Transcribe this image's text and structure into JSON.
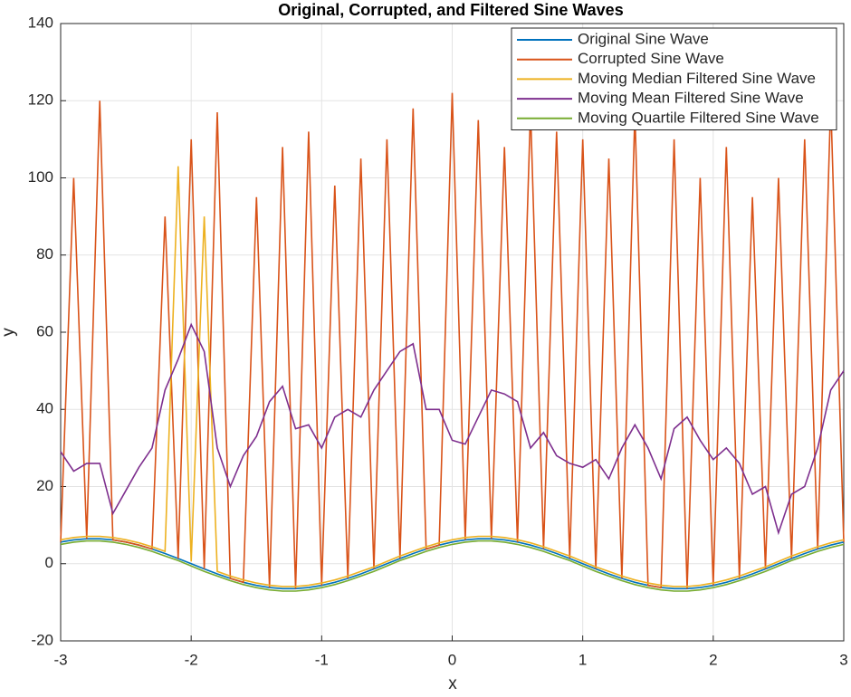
{
  "chart_data": {
    "type": "line",
    "title": "Original, Corrupted, and Filtered Sine Waves",
    "xlabel": "x",
    "ylabel": "y",
    "x": [
      -3,
      -2.9,
      -2.8,
      -2.7,
      -2.6,
      -2.5,
      -2.4,
      -2.3,
      -2.2,
      -2.1,
      -2,
      -1.9,
      -1.8,
      -1.7,
      -1.6,
      -1.5,
      -1.4,
      -1.3,
      -1.2,
      -1.1,
      -1,
      -0.9,
      -0.8,
      -0.7,
      -0.6,
      -0.5,
      -0.4,
      -0.3,
      -0.2,
      -0.1,
      0,
      0.1,
      0.2,
      0.3,
      0.4,
      0.5,
      0.6,
      0.7,
      0.8,
      0.9,
      1,
      1.1,
      1.2,
      1.3,
      1.4,
      1.5,
      1.6,
      1.7,
      1.8,
      1.9,
      2,
      2.1,
      2.2,
      2.3,
      2.4,
      2.5,
      2.6,
      2.7,
      2.8,
      2.9,
      3
    ],
    "series": [
      {
        "name": "Original Sine Wave",
        "color": "#0072BD",
        "values": [
          5.63,
          6.18,
          6.47,
          6.47,
          6.18,
          5.63,
          4.83,
          3.82,
          2.64,
          1.35,
          0,
          -1.35,
          -2.64,
          -3.82,
          -4.83,
          -5.63,
          -6.18,
          -6.47,
          -6.47,
          -6.18,
          -5.63,
          -4.83,
          -3.82,
          -2.64,
          -1.35,
          0,
          1.35,
          2.64,
          3.82,
          4.83,
          5.63,
          6.18,
          6.47,
          6.47,
          6.18,
          5.63,
          4.83,
          3.82,
          2.64,
          1.35,
          0,
          -1.35,
          -2.64,
          -3.82,
          -4.83,
          -5.63,
          -6.18,
          -6.47,
          -6.47,
          -6.18,
          -5.63,
          -4.83,
          -3.82,
          -2.64,
          -1.35,
          0,
          1.35,
          2.64,
          3.82,
          4.83,
          5.63
        ]
      },
      {
        "name": "Corrupted Sine Wave",
        "color": "#D95319",
        "values": [
          5.63,
          100,
          6.47,
          120,
          6.18,
          5.63,
          4.83,
          3.82,
          90,
          1.35,
          110,
          -1.35,
          117,
          -3.82,
          -4.83,
          95,
          -6.18,
          108,
          -6.47,
          112,
          -5.63,
          98,
          -3.82,
          105,
          -1.35,
          110,
          1.35,
          118,
          3.82,
          4.83,
          122,
          6.18,
          115,
          6.47,
          108,
          5.63,
          118,
          3.82,
          112,
          1.35,
          110,
          -1.35,
          105,
          -3.82,
          117,
          -5.63,
          -6.18,
          110,
          -6.47,
          100,
          -5.63,
          108,
          -3.82,
          95,
          -1.35,
          100,
          1.35,
          110,
          3.82,
          120,
          5.63
        ]
      },
      {
        "name": "Moving Median Filtered Sine Wave",
        "color": "#EDB120",
        "values": [
          6.2,
          6.8,
          7.1,
          7.1,
          6.8,
          6.2,
          5.4,
          4.4,
          3.2,
          103,
          0.6,
          90,
          -2.0,
          -3.2,
          -4.2,
          -5.0,
          -5.6,
          -5.9,
          -5.9,
          -5.6,
          -5.0,
          -4.2,
          -3.2,
          -2.0,
          -0.8,
          0.6,
          2.0,
          3.2,
          4.4,
          5.4,
          6.2,
          6.8,
          7.1,
          7.1,
          6.8,
          6.2,
          5.4,
          4.4,
          3.2,
          2.0,
          0.6,
          -0.8,
          -2.0,
          -3.2,
          -4.2,
          -5.0,
          -5.6,
          -5.9,
          -5.9,
          -5.6,
          -5.0,
          -4.2,
          -3.2,
          -2.0,
          -0.8,
          0.6,
          2.0,
          3.2,
          4.4,
          5.4,
          6.2
        ]
      },
      {
        "name": "Moving Mean Filtered Sine Wave",
        "color": "#7E2F8E",
        "values": [
          29,
          24,
          26,
          26,
          13,
          19,
          25,
          30,
          45,
          53,
          62,
          55,
          30,
          20,
          28,
          33,
          42,
          46,
          35,
          36,
          30,
          38,
          40,
          38,
          45,
          50,
          55,
          57,
          40,
          40,
          32,
          31,
          38,
          45,
          44,
          42,
          30,
          34,
          28,
          26,
          25,
          27,
          22,
          30,
          36,
          30,
          22,
          35,
          38,
          32,
          27,
          30,
          26,
          18,
          20,
          8,
          18,
          20,
          30,
          45,
          50
        ]
      },
      {
        "name": "Moving Quartile Filtered Sine Wave",
        "color": "#77AC30",
        "values": [
          5.0,
          5.6,
          5.9,
          5.9,
          5.6,
          5.0,
          4.2,
          3.2,
          2.0,
          0.8,
          -0.6,
          -2.0,
          -3.2,
          -4.4,
          -5.4,
          -6.2,
          -6.8,
          -7.1,
          -7.1,
          -6.8,
          -6.2,
          -5.4,
          -4.4,
          -3.2,
          -2.0,
          -0.6,
          0.8,
          2.0,
          3.2,
          4.2,
          5.0,
          5.6,
          5.9,
          5.9,
          5.6,
          5.0,
          4.2,
          3.2,
          2.0,
          0.8,
          -0.6,
          -2.0,
          -3.2,
          -4.4,
          -5.4,
          -6.2,
          -6.8,
          -7.1,
          -7.1,
          -6.8,
          -6.2,
          -5.4,
          -4.4,
          -3.2,
          -2.0,
          -0.6,
          0.8,
          2.0,
          3.2,
          4.2,
          5.0
        ]
      }
    ],
    "xlim": [
      -3,
      3
    ],
    "xticks": [
      -3,
      -2,
      -1,
      0,
      1,
      2,
      3
    ],
    "ylim": [
      -20,
      140
    ],
    "yticks": [
      -20,
      0,
      20,
      40,
      60,
      80,
      100,
      120,
      140
    ],
    "grid": true,
    "legend": "top-right"
  }
}
